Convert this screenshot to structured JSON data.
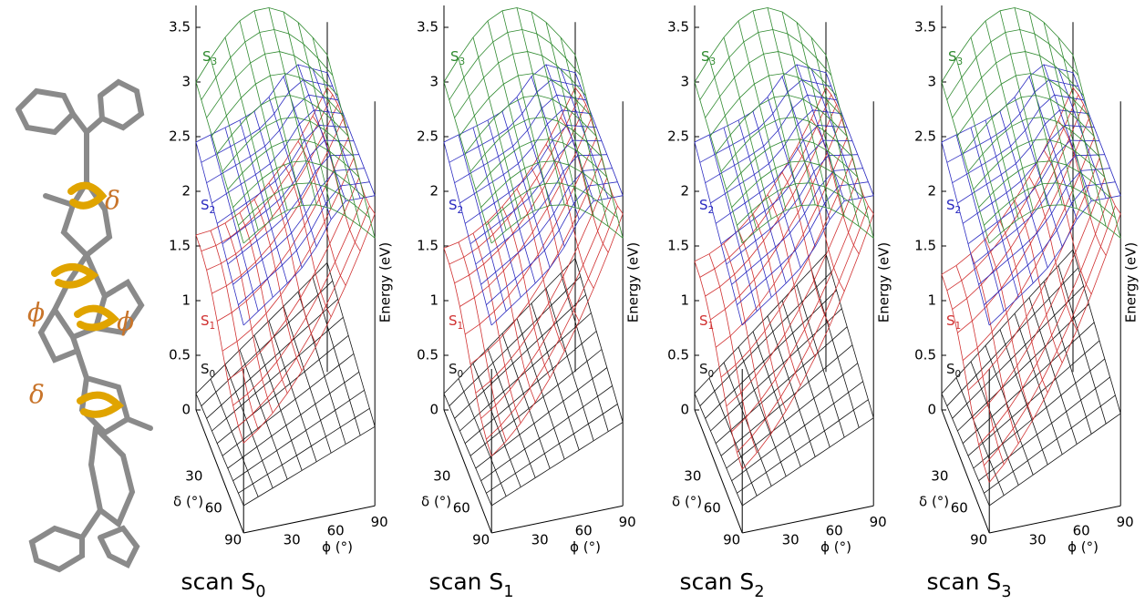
{
  "molecule": {
    "angle_labels": [
      "δ",
      "ϕ",
      "ϕ",
      "δ"
    ]
  },
  "panels": [
    {
      "title": {
        "text": "scan S",
        "sub": "0"
      },
      "energy_axis": {
        "label": "Energy (eV)",
        "ticks": [
          "0",
          "0.5",
          "1",
          "1.5",
          "2",
          "2.5",
          "3",
          "3.5"
        ]
      },
      "delta_axis": {
        "label": "δ (°)",
        "ticks": [
          "30",
          "60",
          "90"
        ]
      },
      "phi_axis": {
        "label": "ϕ (°)",
        "ticks": [
          "30",
          "60",
          "90"
        ]
      },
      "states": [
        {
          "base": "S",
          "sub": "0"
        },
        {
          "base": "S",
          "sub": "1"
        },
        {
          "base": "S",
          "sub": "2"
        },
        {
          "base": "S",
          "sub": "3"
        }
      ]
    },
    {
      "title": {
        "text": "scan S",
        "sub": "1"
      },
      "energy_axis": {
        "label": "Energy (eV)",
        "ticks": [
          "0",
          "0.5",
          "1",
          "1.5",
          "2",
          "2.5",
          "3",
          "3.5"
        ]
      },
      "delta_axis": {
        "label": "δ (°)",
        "ticks": [
          "30",
          "60",
          "90"
        ]
      },
      "phi_axis": {
        "label": "ϕ (°)",
        "ticks": [
          "30",
          "60",
          "90"
        ]
      },
      "states": [
        {
          "base": "S",
          "sub": "0"
        },
        {
          "base": "S",
          "sub": "1"
        },
        {
          "base": "S",
          "sub": "2"
        },
        {
          "base": "S",
          "sub": "3"
        }
      ]
    },
    {
      "title": {
        "text": "scan S",
        "sub": "2"
      },
      "energy_axis": {
        "label": "Energy (eV)",
        "ticks": [
          "0",
          "0.5",
          "1",
          "1.5",
          "2",
          "2.5",
          "3",
          "3.5"
        ]
      },
      "delta_axis": {
        "label": "δ (°)",
        "ticks": [
          "30",
          "60",
          "90"
        ]
      },
      "phi_axis": {
        "label": "ϕ (°)",
        "ticks": [
          "30",
          "60",
          "90"
        ]
      },
      "states": [
        {
          "base": "S",
          "sub": "0"
        },
        {
          "base": "S",
          "sub": "1"
        },
        {
          "base": "S",
          "sub": "2"
        },
        {
          "base": "S",
          "sub": "3"
        }
      ]
    },
    {
      "title": {
        "text": "scan S",
        "sub": "3"
      },
      "energy_axis": {
        "label": "Energy (eV)",
        "ticks": [
          "0",
          "0.5",
          "1",
          "1.5",
          "2",
          "2.5",
          "3",
          "3.5"
        ]
      },
      "delta_axis": {
        "label": "δ (°)",
        "ticks": [
          "30",
          "60",
          "90"
        ]
      },
      "phi_axis": {
        "label": "ϕ (°)",
        "ticks": [
          "30",
          "60",
          "90"
        ]
      },
      "states": [
        {
          "base": "S",
          "sub": "0"
        },
        {
          "base": "S",
          "sub": "1"
        },
        {
          "base": "S",
          "sub": "2"
        },
        {
          "base": "S",
          "sub": "3"
        }
      ]
    }
  ]
}
